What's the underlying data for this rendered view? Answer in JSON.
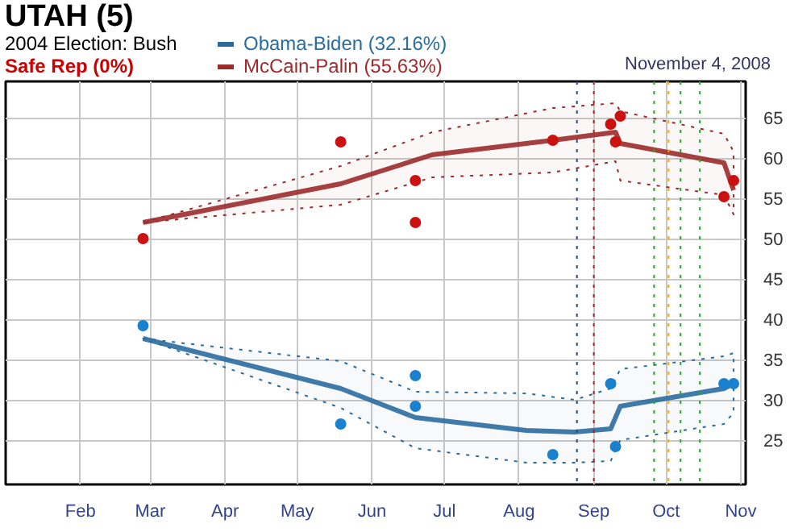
{
  "chart_data": {
    "type": "line",
    "title": "UTAH (5)",
    "subtitle": "2004 Election: Bush",
    "annotations": [
      "Safe Rep (0%)",
      "November 4, 2008"
    ],
    "x": [
      "2008-02-27",
      "2008-05-19",
      "2008-06-19",
      "2008-08-04",
      "2008-08-24",
      "2008-09-08",
      "2008-09-12",
      "2008-10-25",
      "2008-10-29"
    ],
    "series": [
      {
        "name": "Obama-Biden (32.16%)",
        "color": "#2b6c9e",
        "values": [
          37.6,
          31.4,
          27.8,
          26.2,
          26.0,
          26.4,
          29.2,
          31.4,
          32.0
        ],
        "lower": [
          37.6,
          29.0,
          24.0,
          22.2,
          22.2,
          22.4,
          25.0,
          27.0,
          28.4
        ],
        "upper": [
          37.6,
          34.8,
          31.0,
          30.8,
          30.0,
          31.4,
          33.8,
          35.4,
          35.8
        ]
      },
      {
        "name": "McCain-Palin (55.63%)",
        "color": "#9c2b2b",
        "x": [
          "2008-02-27",
          "2008-05-19",
          "2008-06-26",
          "2008-08-15",
          "2008-09-10",
          "2008-09-12",
          "2008-10-25",
          "2008-10-29"
        ],
        "values": [
          52.0,
          56.8,
          60.4,
          62.2,
          63.2,
          61.8,
          59.4,
          56.0
        ],
        "lower": [
          52.0,
          54.2,
          57.6,
          58.2,
          59.6,
          57.2,
          55.4,
          53.0
        ],
        "upper": [
          52.0,
          59.0,
          63.2,
          66.2,
          66.8,
          65.8,
          63.0,
          60.8
        ]
      },
      {
        "type": "scatter",
        "marker": "circle",
        "color": "#1a80d0",
        "x": [
          "2008-02-27",
          "2008-05-19",
          "2008-06-19",
          "2008-06-19",
          "2008-08-15",
          "2008-09-08",
          "2008-09-10",
          "2008-10-25",
          "2008-10-29"
        ],
        "values": [
          39.2,
          27.0,
          33.0,
          29.2,
          23.2,
          32.0,
          24.2,
          32.0,
          32.0
        ]
      },
      {
        "type": "scatter",
        "marker": "circle",
        "color": "#cc1111",
        "x": [
          "2008-02-27",
          "2008-05-19",
          "2008-06-19",
          "2008-06-19",
          "2008-08-15",
          "2008-09-08",
          "2008-09-12",
          "2008-09-10",
          "2008-10-25",
          "2008-10-29"
        ],
        "values": [
          50.0,
          62.0,
          57.2,
          52.0,
          62.2,
          64.2,
          65.2,
          62.0,
          55.2,
          57.2
        ]
      }
    ],
    "xlim": [
      "2008-01-01",
      "2008-11-03"
    ],
    "xticks": [
      {
        "value": "2008-02-01",
        "label": "Feb"
      },
      {
        "value": "2008-03-01",
        "label": "Mar"
      },
      {
        "value": "2008-04-01",
        "label": "Apr"
      },
      {
        "value": "2008-05-01",
        "label": "May"
      },
      {
        "value": "2008-06-01",
        "label": "Jun"
      },
      {
        "value": "2008-07-01",
        "label": "Jul"
      },
      {
        "value": "2008-08-01",
        "label": "Aug"
      },
      {
        "value": "2008-09-01",
        "label": "Sep"
      },
      {
        "value": "2008-10-01",
        "label": "Oct"
      },
      {
        "value": "2008-11-01",
        "label": "Nov"
      }
    ],
    "ylim": [
      19.5,
      69.5
    ],
    "yticks": [
      25,
      30,
      35,
      40,
      45,
      50,
      55,
      60,
      65
    ],
    "ref_lines": [
      {
        "axis": "x",
        "value": "2008-08-25",
        "color": "#1f4e8c",
        "line_style": "dotted"
      },
      {
        "axis": "x",
        "value": "2008-09-01",
        "color": "#aa2222",
        "line_style": "dotted"
      },
      {
        "axis": "x",
        "value": "2008-09-26",
        "color": "#22aa22",
        "line_style": "dotted"
      },
      {
        "axis": "x",
        "value": "2008-10-02",
        "color": "#ffa500",
        "line_style": "dotted"
      },
      {
        "axis": "x",
        "value": "2008-10-07",
        "color": "#22aa22",
        "line_style": "dotted"
      },
      {
        "axis": "x",
        "value": "2008-10-15",
        "color": "#22aa22",
        "line_style": "dotted"
      }
    ],
    "grid": true,
    "legend": "top",
    "marker": "none",
    "line_style": "solid"
  }
}
